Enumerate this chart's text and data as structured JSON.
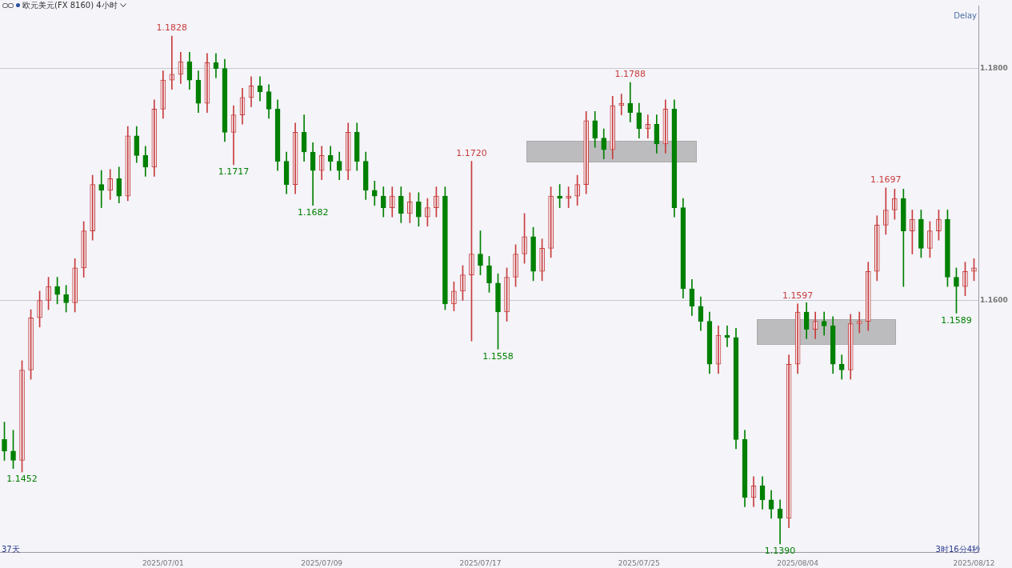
{
  "chart_data": {
    "type": "candlestick",
    "title": "欧元美元(FX 8160)  4小时",
    "categories": [
      null,
      null,
      null,
      null,
      null,
      null,
      null,
      null,
      null,
      null,
      null,
      null,
      null,
      null,
      null,
      null,
      null,
      null,
      "2025/07/01",
      null,
      null,
      null,
      null,
      null,
      null,
      null,
      null,
      null,
      null,
      null,
      null,
      null,
      null,
      null,
      null,
      null,
      "2025/07/09",
      null,
      null,
      null,
      null,
      null,
      null,
      null,
      null,
      null,
      null,
      null,
      null,
      null,
      null,
      null,
      null,
      null,
      "2025/07/17",
      null,
      null,
      null,
      null,
      null,
      null,
      null,
      null,
      null,
      null,
      null,
      null,
      null,
      null,
      null,
      null,
      null,
      "2025/07/25",
      null,
      null,
      null,
      null,
      null,
      null,
      null,
      null,
      null,
      null,
      null,
      null,
      null,
      null,
      null,
      null,
      null,
      "2025/08/04",
      null,
      null,
      null,
      null,
      null,
      null,
      null,
      null,
      null,
      null,
      null,
      null,
      null,
      null,
      null,
      null,
      null,
      null,
      null,
      "2025/08/12"
    ],
    "ohlc": [
      [
        1.148,
        1.1495,
        1.1462,
        1.147
      ],
      [
        1.147,
        1.1488,
        1.1455,
        1.1462
      ],
      [
        1.1462,
        1.1548,
        1.1452,
        1.154
      ],
      [
        1.154,
        1.1592,
        1.1532,
        1.1585
      ],
      [
        1.1585,
        1.1608,
        1.1577,
        1.16
      ],
      [
        1.16,
        1.162,
        1.1592,
        1.1612
      ],
      [
        1.1612,
        1.162,
        1.1597,
        1.1605
      ],
      [
        1.1605,
        1.1613,
        1.159,
        1.1598
      ],
      [
        1.1598,
        1.1636,
        1.159,
        1.1628
      ],
      [
        1.1628,
        1.1668,
        1.162,
        1.166
      ],
      [
        1.166,
        1.1708,
        1.1652,
        1.17
      ],
      [
        1.17,
        1.1712,
        1.168,
        1.1695
      ],
      [
        1.1695,
        1.1713,
        1.1687,
        1.1705
      ],
      [
        1.1705,
        1.1715,
        1.1684,
        1.169
      ],
      [
        1.169,
        1.175,
        1.1686,
        1.1742
      ],
      [
        1.1742,
        1.175,
        1.1719,
        1.1725
      ],
      [
        1.1725,
        1.1733,
        1.1707,
        1.1715
      ],
      [
        1.1715,
        1.1773,
        1.1707,
        1.1765
      ],
      [
        1.1765,
        1.1798,
        1.1757,
        1.179
      ],
      [
        1.179,
        1.1828,
        1.1782,
        1.1795
      ],
      [
        1.1795,
        1.1814,
        1.1787,
        1.1806
      ],
      [
        1.1806,
        1.1814,
        1.1782,
        1.179
      ],
      [
        1.179,
        1.1798,
        1.1762,
        1.177
      ],
      [
        1.177,
        1.1813,
        1.1762,
        1.1805
      ],
      [
        1.1805,
        1.1813,
        1.1792,
        1.18
      ],
      [
        1.18,
        1.1808,
        1.1737,
        1.1745
      ],
      [
        1.1745,
        1.1768,
        1.1717,
        1.176
      ],
      [
        1.176,
        1.1783,
        1.1752,
        1.1775
      ],
      [
        1.1775,
        1.1793,
        1.1767,
        1.1785
      ],
      [
        1.1785,
        1.1793,
        1.1772,
        1.178
      ],
      [
        1.178,
        1.1786,
        1.1757,
        1.1765
      ],
      [
        1.1765,
        1.1773,
        1.1712,
        1.172
      ],
      [
        1.172,
        1.1728,
        1.1692,
        1.17
      ],
      [
        1.17,
        1.1753,
        1.1692,
        1.1745
      ],
      [
        1.1745,
        1.176,
        1.172,
        1.1728
      ],
      [
        1.1728,
        1.1736,
        1.1682,
        1.1712
      ],
      [
        1.1712,
        1.1733,
        1.1704,
        1.1725
      ],
      [
        1.1725,
        1.1733,
        1.1712,
        1.172
      ],
      [
        1.172,
        1.1728,
        1.1704,
        1.1712
      ],
      [
        1.1712,
        1.1753,
        1.1704,
        1.1745
      ],
      [
        1.1745,
        1.1753,
        1.1712,
        1.172
      ],
      [
        1.172,
        1.1728,
        1.1687,
        1.1695
      ],
      [
        1.1695,
        1.1703,
        1.1682,
        1.169
      ],
      [
        1.169,
        1.1698,
        1.1672,
        1.168
      ],
      [
        1.168,
        1.1698,
        1.1672,
        1.169
      ],
      [
        1.169,
        1.1698,
        1.1667,
        1.1675
      ],
      [
        1.1675,
        1.1693,
        1.1667,
        1.1685
      ],
      [
        1.1685,
        1.1693,
        1.1664,
        1.1672
      ],
      [
        1.1672,
        1.1688,
        1.1664,
        1.168
      ],
      [
        1.168,
        1.1698,
        1.1672,
        1.169
      ],
      [
        1.169,
        1.1698,
        1.1592,
        1.1597
      ],
      [
        1.1597,
        1.1616,
        1.1591,
        1.1608
      ],
      [
        1.1608,
        1.163,
        1.16,
        1.1622
      ],
      [
        1.1622,
        1.172,
        1.1565,
        1.164
      ],
      [
        1.164,
        1.166,
        1.1622,
        1.163
      ],
      [
        1.163,
        1.1638,
        1.1607,
        1.1615
      ],
      [
        1.1615,
        1.1623,
        1.1558,
        1.159
      ],
      [
        1.159,
        1.1628,
        1.1582,
        1.162
      ],
      [
        1.162,
        1.1648,
        1.1612,
        1.164
      ],
      [
        1.164,
        1.1675,
        1.1632,
        1.1655
      ],
      [
        1.1655,
        1.1663,
        1.1617,
        1.1625
      ],
      [
        1.1625,
        1.1653,
        1.1617,
        1.1645
      ],
      [
        1.1645,
        1.1698,
        1.1637,
        1.169
      ],
      [
        1.169,
        1.17,
        1.168,
        1.1688
      ],
      [
        1.1688,
        1.1698,
        1.168,
        1.169
      ],
      [
        1.169,
        1.1708,
        1.1682,
        1.17
      ],
      [
        1.17,
        1.1763,
        1.1692,
        1.1755
      ],
      [
        1.1755,
        1.1763,
        1.1732,
        1.174
      ],
      [
        1.174,
        1.1748,
        1.1722,
        1.173
      ],
      [
        1.173,
        1.1776,
        1.1722,
        1.1768
      ],
      [
        1.1768,
        1.1778,
        1.176,
        1.177
      ],
      [
        1.177,
        1.1788,
        1.1754,
        1.1762
      ],
      [
        1.1762,
        1.177,
        1.174,
        1.1748
      ],
      [
        1.1748,
        1.176,
        1.174,
        1.1752
      ],
      [
        1.1752,
        1.176,
        1.1727,
        1.1735
      ],
      [
        1.1735,
        1.1773,
        1.1727,
        1.1765
      ],
      [
        1.1765,
        1.1773,
        1.1672,
        1.168
      ],
      [
        1.168,
        1.1688,
        1.1602,
        1.161
      ],
      [
        1.161,
        1.1618,
        1.1587,
        1.1595
      ],
      [
        1.1595,
        1.1603,
        1.1574,
        1.1582
      ],
      [
        1.1582,
        1.159,
        1.1537,
        1.1545
      ],
      [
        1.1545,
        1.1578,
        1.1537,
        1.157
      ],
      [
        1.157,
        1.1578,
        1.156,
        1.1568
      ],
      [
        1.1568,
        1.1576,
        1.1472,
        1.148
      ],
      [
        1.148,
        1.1488,
        1.1422,
        1.143
      ],
      [
        1.143,
        1.1448,
        1.1422,
        1.144
      ],
      [
        1.144,
        1.1448,
        1.142,
        1.1428
      ],
      [
        1.1428,
        1.1436,
        1.1412,
        1.142
      ],
      [
        1.142,
        1.1428,
        1.139,
        1.1412
      ],
      [
        1.1412,
        1.1553,
        1.1404,
        1.1545
      ],
      [
        1.1545,
        1.1597,
        1.1537,
        1.159
      ],
      [
        1.159,
        1.1598,
        1.1567,
        1.1575
      ],
      [
        1.1575,
        1.159,
        1.1567,
        1.1582
      ],
      [
        1.1582,
        1.159,
        1.157,
        1.1578
      ],
      [
        1.1578,
        1.1586,
        1.1537,
        1.1545
      ],
      [
        1.1545,
        1.1553,
        1.1532,
        1.154
      ],
      [
        1.154,
        1.1588,
        1.1532,
        1.158
      ],
      [
        1.158,
        1.159,
        1.1572,
        1.1582
      ],
      [
        1.1582,
        1.1633,
        1.1574,
        1.1625
      ],
      [
        1.1625,
        1.1673,
        1.1617,
        1.1665
      ],
      [
        1.1665,
        1.1697,
        1.1657,
        1.1678
      ],
      [
        1.1678,
        1.1696,
        1.167,
        1.1688
      ],
      [
        1.1688,
        1.1696,
        1.1612,
        1.166
      ],
      [
        1.166,
        1.1678,
        1.164,
        1.167
      ],
      [
        1.167,
        1.1678,
        1.1637,
        1.1645
      ],
      [
        1.1645,
        1.1668,
        1.1637,
        1.166
      ],
      [
        1.166,
        1.1678,
        1.1652,
        1.167
      ],
      [
        1.167,
        1.1678,
        1.1612,
        1.162
      ],
      [
        1.162,
        1.1628,
        1.1589,
        1.1612
      ],
      [
        1.1612,
        1.1633,
        1.1604,
        1.1625
      ],
      [
        1.1625,
        1.1636,
        1.1617,
        1.1628
      ]
    ],
    "colors": [
      "#008000",
      "#008000",
      "#c83c3c",
      "#c83c3c",
      "#c83c3c",
      "#c83c3c",
      "#008000",
      "#008000",
      "#c83c3c",
      "#c83c3c",
      "#c83c3c",
      "#008000",
      "#c83c3c",
      "#008000",
      "#c83c3c",
      "#008000",
      "#008000",
      "#c83c3c",
      "#c83c3c",
      "#c83c3c",
      "#c83c3c",
      "#008000",
      "#008000",
      "#c83c3c",
      "#008000",
      "#008000",
      "#c83c3c",
      "#c83c3c",
      "#c83c3c",
      "#008000",
      "#008000",
      "#008000",
      "#008000",
      "#c83c3c",
      "#008000",
      "#008000",
      "#c83c3c",
      "#008000",
      "#008000",
      "#c83c3c",
      "#008000",
      "#008000",
      "#008000",
      "#008000",
      "#c83c3c",
      "#008000",
      "#c83c3c",
      "#008000",
      "#c83c3c",
      "#c83c3c",
      "#008000",
      "#c83c3c",
      "#c83c3c",
      "#c83c3c",
      "#008000",
      "#008000",
      "#008000",
      "#c83c3c",
      "#c83c3c",
      "#c83c3c",
      "#008000",
      "#c83c3c",
      "#c83c3c",
      "#008000",
      "#c83c3c",
      "#c83c3c",
      "#c83c3c",
      "#008000",
      "#008000",
      "#c83c3c",
      "#c83c3c",
      "#008000",
      "#008000",
      "#c83c3c",
      "#008000",
      "#c83c3c",
      "#008000",
      "#008000",
      "#008000",
      "#008000",
      "#008000",
      "#c83c3c",
      "#008000",
      "#008000",
      "#008000",
      "#c83c3c",
      "#008000",
      "#008000",
      "#008000",
      "#c83c3c",
      "#c83c3c",
      "#008000",
      "#c83c3c",
      "#008000",
      "#008000",
      "#008000",
      "#c83c3c",
      "#c83c3c",
      "#c83c3c",
      "#c83c3c",
      "#c83c3c",
      "#c83c3c",
      "#008000",
      "#c83c3c",
      "#008000",
      "#c83c3c",
      "#c83c3c",
      "#008000",
      "#008000",
      "#c83c3c",
      "#c83c3c"
    ],
    "ylim": [
      1.1383,
      1.1854
    ],
    "yticks": [
      {
        "value": 1.18,
        "label": "1.1800"
      },
      {
        "value": 1.16,
        "label": "1.1600"
      }
    ],
    "grid": "y",
    "annotations": [
      {
        "text": "1.1828",
        "y": 1.1828
      },
      {
        "text": "1.1717",
        "y": 1.1717
      },
      {
        "text": "1.1682",
        "y": 1.1682
      },
      {
        "text": "1.1720",
        "y": 1.172
      },
      {
        "text": "1.1558",
        "y": 1.1558
      },
      {
        "text": "1.1788",
        "y": 1.1788
      },
      {
        "text": "1.1390",
        "y": 1.139
      },
      {
        "text": "1.1597",
        "y": 1.1597
      },
      {
        "text": "1.1697",
        "y": 1.1697
      },
      {
        "text": "1.1589",
        "y": 1.1589
      },
      {
        "text": "1.1452",
        "y": 1.1452
      },
      "Delay",
      "37天",
      "3时16分4秒"
    ]
  }
}
